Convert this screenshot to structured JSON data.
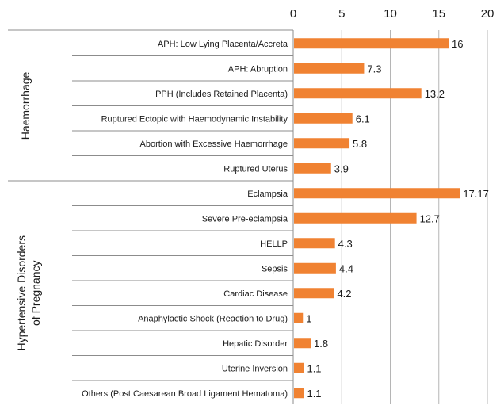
{
  "chart_data": {
    "type": "bar",
    "orientation": "horizontal",
    "xlim": [
      0,
      20
    ],
    "xticks": [
      "0",
      "5",
      "10",
      "15",
      "20"
    ],
    "tick_position": "top",
    "grid": true,
    "bar_color": "#f08232",
    "groups": [
      {
        "label": "Haemorrhage",
        "start": 0,
        "end": 5
      },
      {
        "label": "Hypertensive Disorders of Pregnancy",
        "start": 6,
        "end": 14
      }
    ],
    "categories": [
      "APH: Low Lying Placenta/Accreta",
      "APH: Abruption",
      "PPH (Includes Retained Placenta)",
      "Ruptured Ectopic with Haemodynamic Instability",
      "Abortion with Excessive Haemorrhage",
      "Ruptured Uterus",
      "Eclampsia",
      "Severe Pre-eclampsia",
      "HELLP",
      "Sepsis",
      "Cardiac Disease",
      "Anaphylactic Shock (Reaction to Drug)",
      "Hepatic Disorder",
      "Uterine Inversion",
      "Others (Post Caesarean Broad Ligament Hematoma)"
    ],
    "values": [
      16,
      7.3,
      13.2,
      6.1,
      5.8,
      3.9,
      17.17,
      12.7,
      4.3,
      4.4,
      4.2,
      1,
      1.8,
      1.1,
      1.1
    ],
    "value_labels": [
      "16",
      "7.3",
      "13.2",
      "6.1",
      "5.8",
      "3.9",
      "17.17",
      "12.7",
      "4.3",
      "4.4",
      "4.2",
      "1",
      "1.8",
      "1.1",
      "1.1"
    ]
  }
}
